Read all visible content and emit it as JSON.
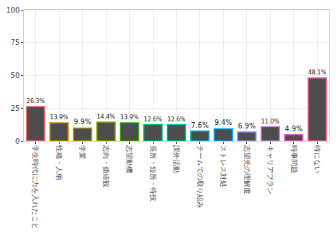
{
  "chart_data": {
    "type": "bar",
    "categories": [
      "学生時代に力を入れたこと",
      "性格・人柄",
      "学業",
      "志向・価値観",
      "志望動機",
      "長所・短所・特技",
      "課外活動",
      "チームでの取り組み",
      "ストレス対処",
      "志望先の理解度",
      "キャリアプラン",
      "時事問題",
      "特にない"
    ],
    "values": [
      26.3,
      13.9,
      9.9,
      14.4,
      13.9,
      12.6,
      12.6,
      7.6,
      9.4,
      6.9,
      11.0,
      4.9,
      48.1
    ],
    "value_labels": [
      "26.3%",
      "13.9%",
      "9.9%",
      "14.4%",
      "13.9%",
      "12.6%",
      "12.6%",
      "7.6%",
      "9.4%",
      "6.9%",
      "11.0%",
      "4.9%",
      "48.1%"
    ],
    "color": "#4d4d4d",
    "colors": [
      "#F8766D",
      "#E18A00",
      "#BE9C00",
      "#8CAB00",
      "#24B700",
      "#00BE70",
      "#00C1AB",
      "#00BBDA",
      "#00ACFC",
      "#8B93FF",
      "#D575FE",
      "#F962DD",
      "#FF65AC"
    ],
    "data_labels": true,
    "ylim": [
      0,
      100
    ],
    "yticks": [
      0,
      25,
      50,
      75,
      100
    ],
    "grid": true
  }
}
